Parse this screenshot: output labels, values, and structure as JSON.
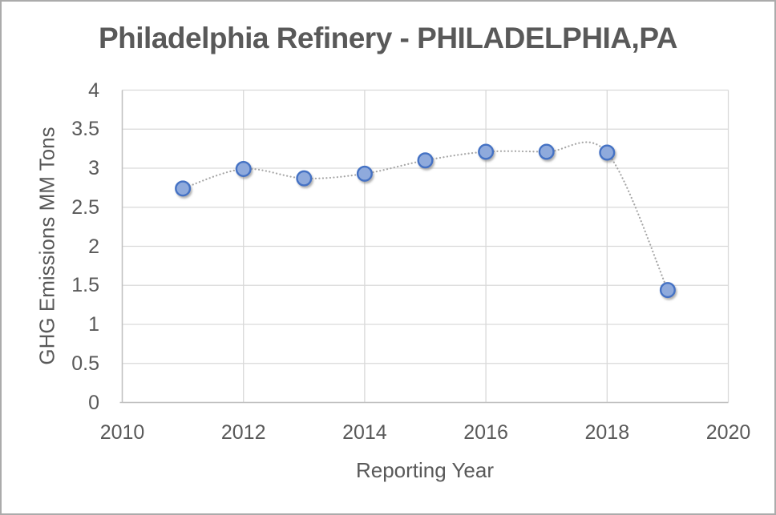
{
  "frame": {
    "background": "#FFFFFF",
    "border_color": "#ABABAB"
  },
  "chart_data": {
    "type": "scatter",
    "title": "Philadelphia Refinery - PHILADELPHIA,PA",
    "xlabel": "Reporting Year",
    "ylabel": "GHG Emissions MM Tons",
    "x": [
      2011,
      2012,
      2013,
      2014,
      2015,
      2016,
      2017,
      2018,
      2019
    ],
    "values": [
      2.74,
      2.99,
      2.87,
      2.93,
      3.1,
      3.21,
      3.21,
      3.2,
      1.44
    ],
    "xlim": [
      2010,
      2020
    ],
    "ylim": [
      0,
      4
    ],
    "x_ticks": [
      {
        "value": 2010,
        "label": "2010"
      },
      {
        "value": 2012,
        "label": "2012"
      },
      {
        "value": 2014,
        "label": "2014"
      },
      {
        "value": 2016,
        "label": "2016"
      },
      {
        "value": 2018,
        "label": "2018"
      },
      {
        "value": 2020,
        "label": "2020"
      }
    ],
    "y_ticks": [
      {
        "value": 0,
        "label": "0"
      },
      {
        "value": 0.5,
        "label": "0.5"
      },
      {
        "value": 1,
        "label": "1"
      },
      {
        "value": 1.5,
        "label": "1.5"
      },
      {
        "value": 2,
        "label": "2"
      },
      {
        "value": 2.5,
        "label": "2.5"
      },
      {
        "value": 3,
        "label": "3"
      },
      {
        "value": 3.5,
        "label": "3.5"
      },
      {
        "value": 4,
        "label": "4"
      }
    ],
    "grid": true,
    "legend": "none",
    "line": {
      "style": "dotted",
      "smooth": true,
      "color": "#A6A6A6"
    },
    "marker": {
      "shape": "circle",
      "fill": "#8FAADC",
      "stroke": "#4472C4"
    },
    "colors": {
      "grid": "#D9D9D9",
      "axis": "#BFBFBF",
      "text": "#595959"
    }
  }
}
